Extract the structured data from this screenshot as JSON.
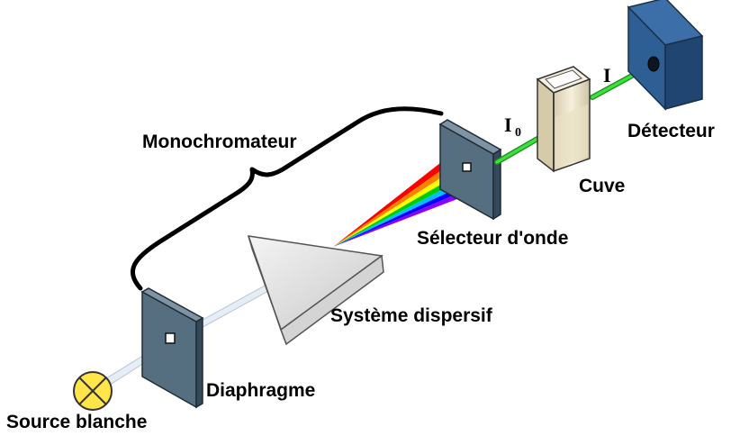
{
  "labels": {
    "source": "Source blanche",
    "diaphragm": "Diaphragme",
    "dispersive": "Système dispersif",
    "monochromator": "Monochromateur",
    "selector": "Sélecteur d'onde",
    "cuvette": "Cuve",
    "detector": "Détecteur"
  },
  "beams": {
    "incident": "I",
    "incident_sub": "0",
    "transmitted": "I"
  },
  "colors": {
    "plate_front": "#4f6b7d",
    "plate_side": "#2f4a5b",
    "detector_front": "#2d5f95",
    "detector_side": "#1f4570",
    "bulb": "#ffe54a",
    "beam_white": "#d9e2ec",
    "beam_green": "#22dd22",
    "prism": "#dcdcdc",
    "cuvette": "#efe6c9"
  },
  "spectrum": [
    "#ff0000",
    "#ff7f00",
    "#ffff00",
    "#00cc00",
    "#00bfff",
    "#0000ff",
    "#8b00ff"
  ]
}
